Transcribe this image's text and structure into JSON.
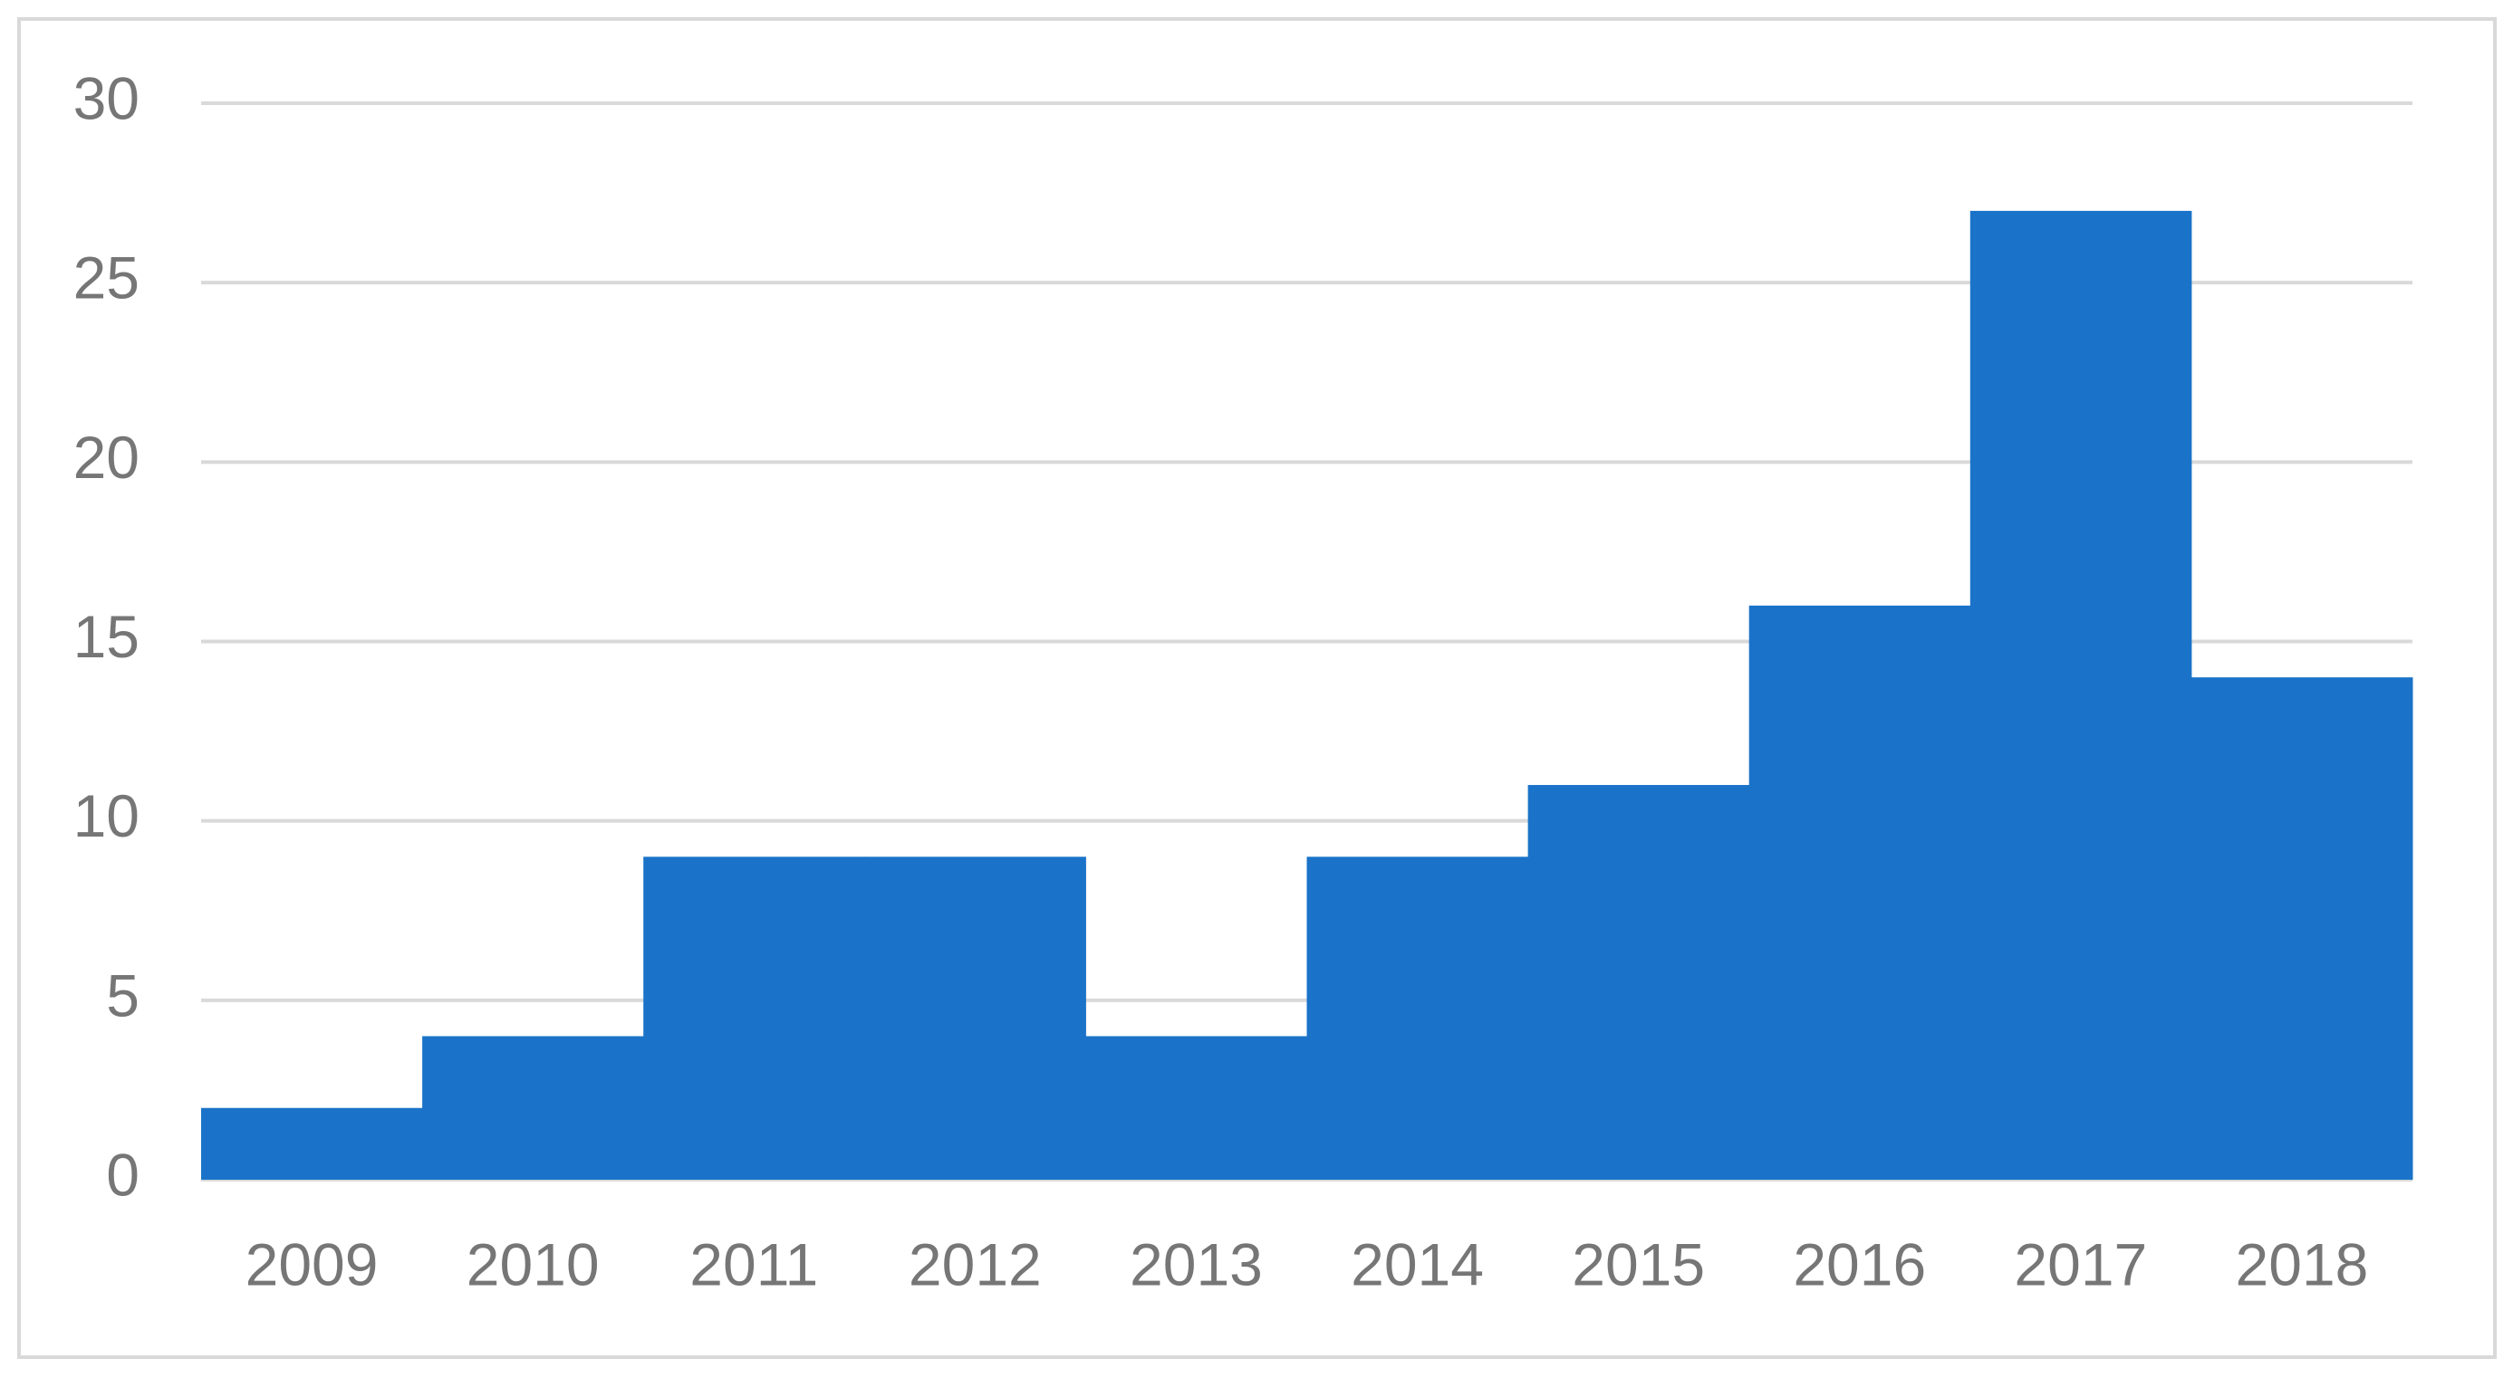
{
  "chart_data": {
    "type": "bar",
    "categories": [
      "2009",
      "2010",
      "2011",
      "2012",
      "2013",
      "2014",
      "2015",
      "2016",
      "2017",
      "2018"
    ],
    "values": [
      2,
      4,
      9,
      9,
      4,
      9,
      11,
      16,
      27,
      14
    ],
    "color": "#1a73c8",
    "ylim": [
      0,
      30
    ],
    "yticks": [
      0,
      5,
      10,
      15,
      20,
      25,
      30
    ],
    "grid": true
  }
}
